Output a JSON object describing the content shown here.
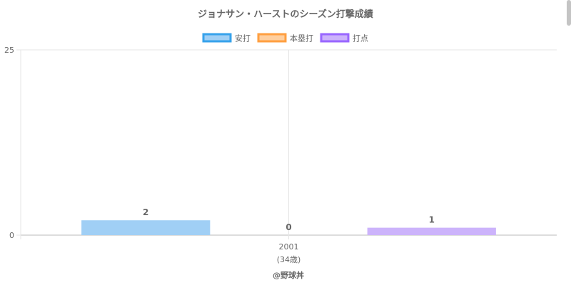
{
  "chart_data": {
    "type": "bar",
    "title": "ジョナサン・ハーストのシーズン打撃成績",
    "categories": [
      "2001"
    ],
    "category_sublabels": [
      "(34歳)"
    ],
    "series": [
      {
        "name": "安打",
        "values": [
          2
        ],
        "fill": "#a0cff5",
        "stroke": "#36a2eb"
      },
      {
        "name": "本塁打",
        "values": [
          0
        ],
        "fill": "#ffcf9f",
        "stroke": "#ff9f40"
      },
      {
        "name": "打点",
        "values": [
          1
        ],
        "fill": "#ccb3fb",
        "stroke": "#9966ff"
      }
    ],
    "ylim": [
      0,
      25
    ],
    "yticks": [
      0,
      25
    ],
    "grid": true,
    "legend_position": "top",
    "xlabel": "",
    "ylabel": ""
  },
  "credit": "@野球丼"
}
